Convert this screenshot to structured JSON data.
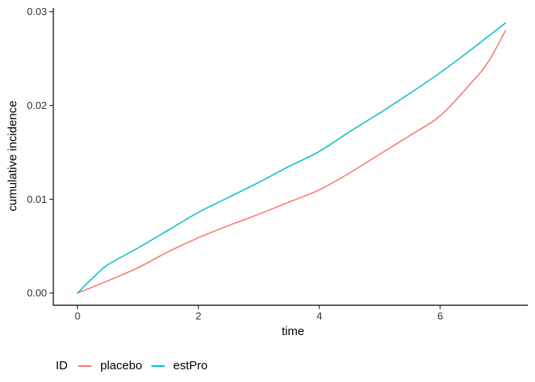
{
  "chart_data": {
    "type": "line",
    "title": "",
    "xlabel": "time",
    "ylabel": "cumulative incidence",
    "xlim": [
      -0.4,
      7.45
    ],
    "ylim": [
      -0.0013,
      0.0304
    ],
    "grid": false,
    "legend_position": "bottom-left",
    "x_ticks": {
      "values": [
        0,
        2,
        4,
        6
      ],
      "labels": [
        "0",
        "2",
        "4",
        "6"
      ]
    },
    "y_ticks": {
      "values": [
        0,
        0.01,
        0.02,
        0.03
      ],
      "labels": [
        "0.00",
        "0.01",
        "0.02",
        "0.03"
      ]
    },
    "legend": {
      "title": "ID",
      "entries": [
        {
          "label": "placebo",
          "color": "#F8766D"
        },
        {
          "label": "estPro",
          "color": "#00BFC4"
        }
      ]
    },
    "series": [
      {
        "name": "placebo",
        "color": "#F8766D",
        "x": [
          0,
          0.5,
          1,
          1.5,
          2,
          2.5,
          3,
          3.5,
          4,
          4.5,
          5,
          5.5,
          6,
          6.5,
          6.8,
          7.08
        ],
        "y": [
          0,
          0.0013,
          0.0027,
          0.0044,
          0.0059,
          0.0072,
          0.0084,
          0.0097,
          0.011,
          0.0128,
          0.0148,
          0.0168,
          0.0189,
          0.0223,
          0.0247,
          0.028
        ]
      },
      {
        "name": "estPro",
        "color": "#00BFC4",
        "x": [
          0,
          0.25,
          0.5,
          1,
          1.5,
          2,
          2.5,
          3,
          3.5,
          4,
          4.5,
          5,
          5.5,
          6,
          6.5,
          7.08
        ],
        "y": [
          0,
          0.0016,
          0.003,
          0.0048,
          0.0067,
          0.0086,
          0.0102,
          0.0118,
          0.0135,
          0.0151,
          0.0172,
          0.0192,
          0.0213,
          0.0235,
          0.0259,
          0.0288
        ]
      }
    ]
  },
  "style": {
    "background": "#ffffff",
    "axis_color": "#000000",
    "tick_color": "#333333",
    "tick_label_color": "#333333",
    "title_color": "#000000"
  }
}
